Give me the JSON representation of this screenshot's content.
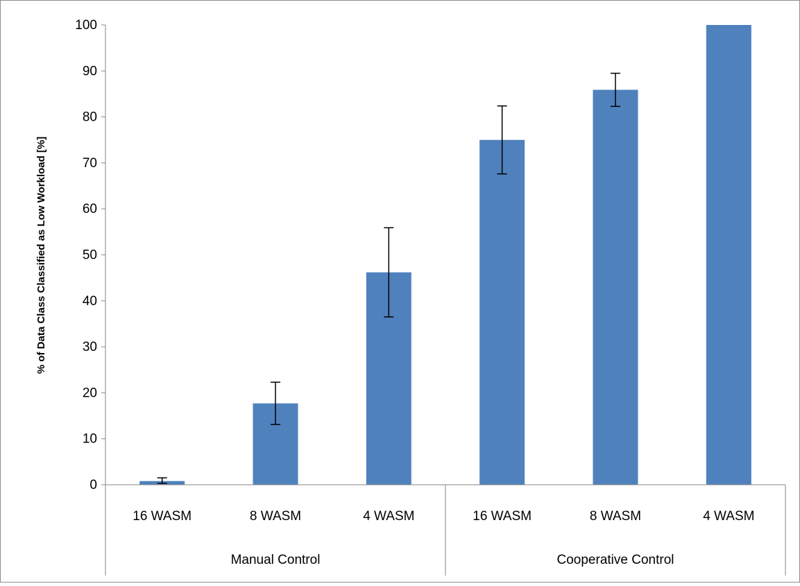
{
  "chart_data": {
    "type": "bar",
    "title": "",
    "xlabel": "",
    "ylabel": "% of Data Class Classified as Low Workload [%]",
    "ylim": [
      0,
      100
    ],
    "yticks": [
      0,
      10,
      20,
      30,
      40,
      50,
      60,
      70,
      80,
      90,
      100
    ],
    "ytick_labels": [
      "0",
      "10",
      "20",
      "30",
      "40",
      "50",
      "60",
      "70",
      "80",
      "90",
      "100"
    ],
    "grid": false,
    "legend": "none",
    "bar_color": "#4f81bd",
    "groups": [
      {
        "label": "Manual Control",
        "categories": [
          "16 WASM",
          "8 WASM",
          "4 WASM"
        ]
      },
      {
        "label": "Cooperative Control",
        "categories": [
          "16 WASM",
          "8 WASM",
          "4 WASM"
        ]
      }
    ],
    "categories": [
      "16 WASM",
      "8 WASM",
      "4 WASM",
      "16 WASM",
      "8 WASM",
      "4 WASM"
    ],
    "values": [
      0.8,
      17.7,
      46.2,
      75.0,
      85.9,
      100.0
    ],
    "error_low": [
      0.3,
      13.1,
      36.5,
      67.6,
      82.3,
      100.0
    ],
    "error_high": [
      1.5,
      22.3,
      55.9,
      82.4,
      89.5,
      100.0
    ]
  }
}
